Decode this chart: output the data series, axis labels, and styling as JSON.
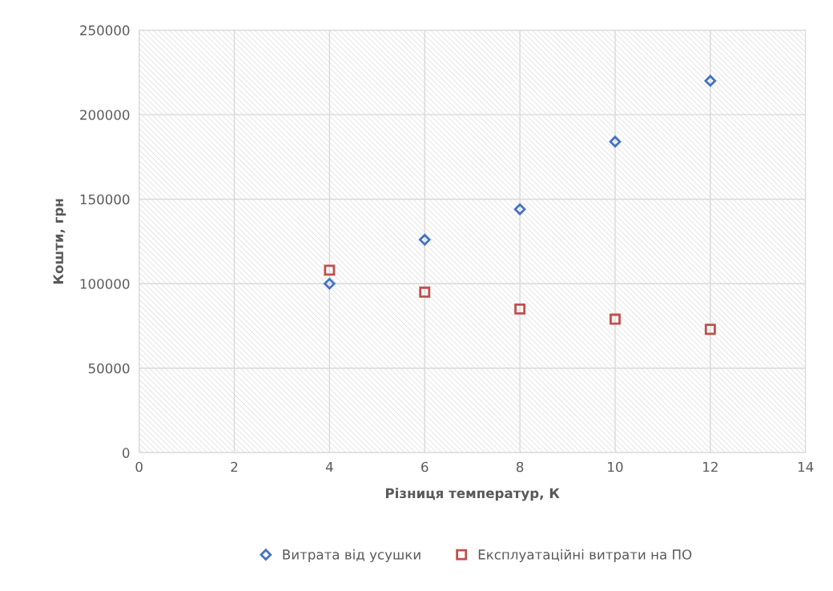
{
  "chart_data": {
    "type": "scatter",
    "xlabel": "Різниця температур, К",
    "ylabel": "Кошти, грн",
    "xlim": [
      0,
      14
    ],
    "xticks": [
      0,
      2,
      4,
      6,
      8,
      10,
      12,
      14
    ],
    "ylim": [
      0,
      250000
    ],
    "yticks": [
      0,
      50000,
      100000,
      150000,
      200000,
      250000
    ],
    "grid": true,
    "legend": "bottom",
    "series": [
      {
        "name": "Витрата від усушки",
        "color": "#4472c4",
        "marker": "diamond",
        "x": [
          4,
          6,
          8,
          10,
          12
        ],
        "values": [
          100000,
          126000,
          144000,
          184000,
          220000
        ]
      },
      {
        "name": "Експлуатаційні витрати на ПО",
        "color": "#c0504d",
        "marker": "square",
        "x": [
          4,
          6,
          8,
          10,
          12
        ],
        "values": [
          108000,
          95000,
          85000,
          79000,
          73000
        ]
      }
    ]
  }
}
